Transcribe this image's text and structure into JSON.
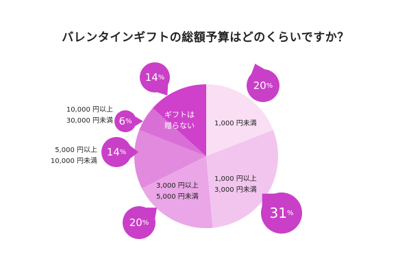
{
  "chart_data": {
    "type": "pie",
    "title": "バレンタインギフトの総額予算はどのくらいですか？",
    "unit": "%",
    "slices": [
      {
        "label": [
          "1,000 円未満"
        ],
        "value": 20,
        "color": "#f9def4"
      },
      {
        "label": [
          "1,000 円以上",
          "3,000 円未満"
        ],
        "value": 31,
        "color": "#f2c5ee"
      },
      {
        "label": [
          "3,000 円以上",
          "5,000 円未満"
        ],
        "value": 20,
        "color": "#eaa6e6"
      },
      {
        "label": [
          "5,000 円以上",
          "10,000 円未満"
        ],
        "value": 14,
        "color": "#e18ade"
      },
      {
        "label": [
          "10,000 円以上",
          "30,000 円未満"
        ],
        "value": 6,
        "color": "#d96fd6"
      },
      {
        "label": [
          "ギフトは",
          "贈らない"
        ],
        "value": 14,
        "color": "#cf40cb"
      }
    ],
    "bubble_color": "#c93fc7"
  }
}
